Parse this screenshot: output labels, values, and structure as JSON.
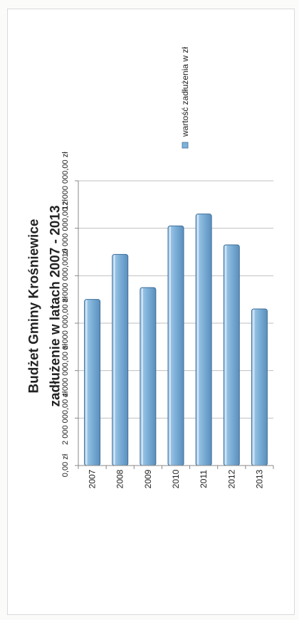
{
  "chart_data": {
    "type": "bar",
    "orientation": "rotated-90-ccw",
    "title_lines": [
      "Budżet Gminy Krośniewice",
      "zadłużenie w latach 2007 - 2013"
    ],
    "categories": [
      "2007",
      "2008",
      "2009",
      "2010",
      "2011",
      "2012",
      "2013"
    ],
    "series": [
      {
        "name": "wartość zadłużenia w zł",
        "values": [
          7000000,
          8900000,
          7500000,
          10100000,
          10600000,
          9300000,
          6600000
        ]
      }
    ],
    "y_ticks": [
      "0,00 zł",
      "2 000 000,00 zł",
      "4 000 000,00 zł",
      "6 000 000,00 zł",
      "8 000 000,00 zł",
      "10 000 000,00 zł",
      "12 000 000,00 zł"
    ],
    "ylim": [
      0,
      12000000
    ],
    "grid": true,
    "legend_position": "right",
    "colors": {
      "bar": "#7fb2d9",
      "bar_edge": "#3f6f98",
      "grid": "#bfbfbf",
      "text": "#222222"
    }
  }
}
